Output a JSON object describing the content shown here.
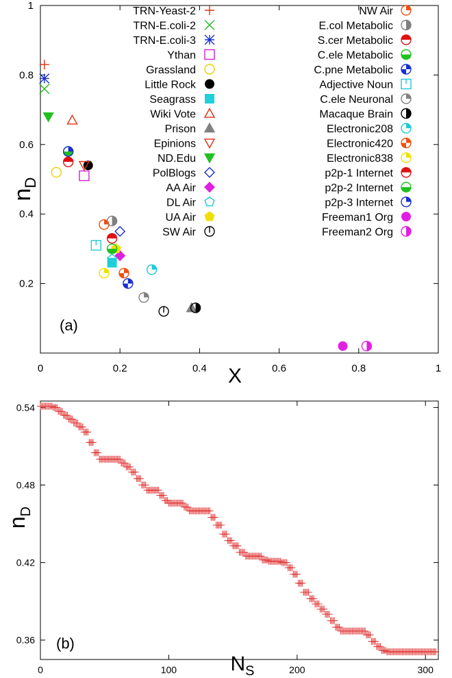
{
  "chart_data": [
    {
      "type": "scatter",
      "panel_label": "(a)",
      "xlabel": "X",
      "ylabel": "n",
      "ylabel_sub": "D",
      "xlim": [
        0,
        1
      ],
      "ylim": [
        0,
        1
      ],
      "xticks": [
        0,
        0.2,
        0.4,
        0.6,
        0.8,
        1
      ],
      "xtick_labels": [
        "0",
        "0.2",
        "0.4",
        "0.6",
        "0.8",
        "1"
      ],
      "yticks": [
        0.2,
        0.4,
        0.6,
        0.8,
        1
      ],
      "ytick_labels": [
        "0.2",
        "0.4",
        "0.6",
        "0.8",
        "1"
      ],
      "legend_position": "top",
      "series": [
        {
          "name": "TRN-Yeast-2",
          "marker": "plus",
          "color": "#e03010",
          "x": 0.01,
          "y": 0.83
        },
        {
          "name": "TRN-E.coli-2",
          "marker": "cross",
          "color": "#22bb22",
          "x": 0.01,
          "y": 0.76
        },
        {
          "name": "TRN-E.coli-3",
          "marker": "star",
          "color": "#1a2fd0",
          "x": 0.01,
          "y": 0.79
        },
        {
          "name": "Ythan",
          "marker": "square-open",
          "color": "#d020d0",
          "x": 0.11,
          "y": 0.51
        },
        {
          "name": "Grassland",
          "marker": "circle-open",
          "color": "#e8d000",
          "x": 0.04,
          "y": 0.52
        },
        {
          "name": "Little Rock",
          "marker": "circle-filled",
          "color": "#000000",
          "x": 0.12,
          "y": 0.54
        },
        {
          "name": "Seagrass",
          "marker": "square-filled",
          "color": "#20d0d8",
          "x": 0.18,
          "y": 0.26
        },
        {
          "name": "Wiki Vote",
          "marker": "triangle-up-open",
          "color": "#e03010",
          "x": 0.08,
          "y": 0.67
        },
        {
          "name": "Prison",
          "marker": "triangle-up-filled",
          "color": "#808080",
          "x": 0.38,
          "y": 0.13
        },
        {
          "name": "Epinions",
          "marker": "triangle-down-open",
          "color": "#e03010",
          "x": 0.11,
          "y": 0.54
        },
        {
          "name": "ND.Edu",
          "marker": "triangle-down-filled",
          "color": "#20c020",
          "x": 0.02,
          "y": 0.68
        },
        {
          "name": "PolBlogs",
          "marker": "diamond-open",
          "color": "#1a2fd0",
          "x": 0.2,
          "y": 0.35
        },
        {
          "name": "AA Air",
          "marker": "diamond-filled",
          "color": "#e020e0",
          "x": 0.2,
          "y": 0.28
        },
        {
          "name": "DL Air",
          "marker": "pentagon-open",
          "color": "#20c8d8",
          "x": 0.18,
          "y": 0.27
        },
        {
          "name": "UA Air",
          "marker": "pentagon-filled",
          "color": "#f0e000",
          "x": 0.19,
          "y": 0.3
        },
        {
          "name": "SW Air",
          "marker": "circle-line",
          "color": "#000000",
          "x": 0.31,
          "y": 0.12
        },
        {
          "name": "NW Air",
          "marker": "circle-quarter",
          "color": "#f05010",
          "x": 0.16,
          "y": 0.37
        },
        {
          "name": "E.col Metabolic",
          "marker": "circle-half-right",
          "color": "#808080",
          "x": 0.18,
          "y": 0.38
        },
        {
          "name": "S.cer Metabolic",
          "marker": "circle-half-top",
          "color": "#e01010",
          "x": 0.07,
          "y": 0.55
        },
        {
          "name": "C.ele Metabolic",
          "marker": "circle-half-bottom",
          "color": "#20c020",
          "x": 0.18,
          "y": 0.3
        },
        {
          "name": "C.pne Metabolic",
          "marker": "circle-quarters",
          "color": "#1a2fd0",
          "x": 0.22,
          "y": 0.2
        },
        {
          "name": "Adjective Noun",
          "marker": "square-line",
          "color": "#20c8d8",
          "x": 0.14,
          "y": 0.31
        },
        {
          "name": "C.ele Neuronal",
          "marker": "circle-quarter",
          "color": "#808080",
          "x": 0.26,
          "y": 0.16
        },
        {
          "name": "Macaque Brain",
          "marker": "circle-half-right",
          "color": "#000000",
          "x": 0.39,
          "y": 0.13
        },
        {
          "name": "Electronic208",
          "marker": "circle-quarter",
          "color": "#20c8d8",
          "x": 0.28,
          "y": 0.24
        },
        {
          "name": "Electronic420",
          "marker": "circle-quarters",
          "color": "#f05010",
          "x": 0.21,
          "y": 0.23
        },
        {
          "name": "Electronic838",
          "marker": "circle-quarter",
          "color": "#f0e000",
          "x": 0.16,
          "y": 0.23
        },
        {
          "name": "p2p-1 Internet",
          "marker": "circle-half-top",
          "color": "#e01010",
          "x": 0.18,
          "y": 0.33
        },
        {
          "name": "p2p-2 Internet",
          "marker": "circle-half-bottom",
          "color": "#20c020",
          "x": 0.07,
          "y": 0.58
        },
        {
          "name": "p2p-3 Internet",
          "marker": "circle-quarter",
          "color": "#1a2fd0",
          "x": 0.07,
          "y": 0.58
        },
        {
          "name": "Freeman1 Org",
          "marker": "circle-filled",
          "color": "#e020e0",
          "x": 0.76,
          "y": 0.02
        },
        {
          "name": "Freeman2 Org",
          "marker": "circle-half-right",
          "color": "#e020e0",
          "x": 0.82,
          "y": 0.02
        }
      ]
    },
    {
      "type": "line",
      "panel_label": "(b)",
      "xlabel": "N",
      "xlabel_sub": "S",
      "ylabel": "n",
      "ylabel_sub": "D",
      "xlim": [
        0,
        310
      ],
      "ylim": [
        0.345,
        0.545
      ],
      "xticks": [
        0,
        100,
        200,
        300
      ],
      "xtick_labels": [
        "0",
        "100",
        "200",
        "300"
      ],
      "yticks": [
        0.36,
        0.42,
        0.48,
        0.54
      ],
      "ytick_labels": [
        "0.36",
        "0.42",
        "0.48",
        "0.54"
      ],
      "marker": "plus",
      "color": "#e03030",
      "step_points": [
        [
          0,
          0.541
        ],
        [
          10,
          0.54
        ],
        [
          14,
          0.537
        ],
        [
          18,
          0.534
        ],
        [
          22,
          0.531
        ],
        [
          26,
          0.528
        ],
        [
          30,
          0.525
        ],
        [
          34,
          0.521
        ],
        [
          38,
          0.513
        ],
        [
          42,
          0.505
        ],
        [
          46,
          0.5
        ],
        [
          63,
          0.497
        ],
        [
          67,
          0.494
        ],
        [
          71,
          0.49
        ],
        [
          75,
          0.485
        ],
        [
          79,
          0.48
        ],
        [
          83,
          0.476
        ],
        [
          93,
          0.472
        ],
        [
          97,
          0.468
        ],
        [
          100,
          0.466
        ],
        [
          112,
          0.463
        ],
        [
          116,
          0.46
        ],
        [
          133,
          0.455
        ],
        [
          137,
          0.449
        ],
        [
          142,
          0.442
        ],
        [
          146,
          0.437
        ],
        [
          150,
          0.433
        ],
        [
          155,
          0.428
        ],
        [
          160,
          0.425
        ],
        [
          173,
          0.422
        ],
        [
          178,
          0.421
        ],
        [
          188,
          0.42
        ],
        [
          193,
          0.416
        ],
        [
          197,
          0.411
        ],
        [
          201,
          0.404
        ],
        [
          205,
          0.397
        ],
        [
          210,
          0.392
        ],
        [
          214,
          0.388
        ],
        [
          218,
          0.384
        ],
        [
          222,
          0.38
        ],
        [
          226,
          0.375
        ],
        [
          230,
          0.37
        ],
        [
          234,
          0.367
        ],
        [
          254,
          0.364
        ],
        [
          258,
          0.359
        ],
        [
          262,
          0.355
        ],
        [
          266,
          0.352
        ],
        [
          270,
          0.351
        ],
        [
          308,
          0.351
        ]
      ]
    }
  ]
}
